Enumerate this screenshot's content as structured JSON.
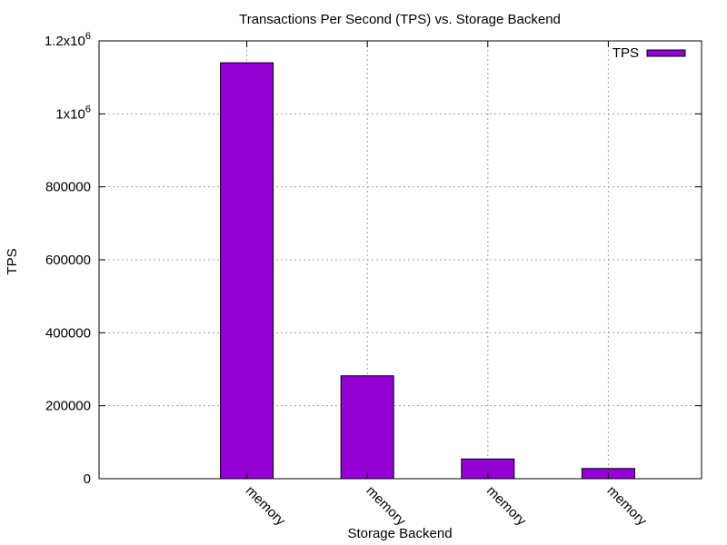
{
  "chart_data": {
    "type": "bar",
    "title": "Transactions Per Second (TPS) vs. Storage Backend",
    "xlabel": "Storage Backend",
    "ylabel": "TPS",
    "categories": [
      "memory",
      "memory",
      "memory",
      "memory"
    ],
    "series": [
      {
        "name": "TPS",
        "color": "#9400d3",
        "values": [
          1140000,
          282000,
          54000,
          28000
        ]
      }
    ],
    "ylim": [
      0,
      1200000
    ],
    "yticks": [
      0,
      200000,
      400000,
      600000,
      800000,
      1000000,
      1200000
    ],
    "ytick_labels": [
      "0",
      "200000",
      "400000",
      "600000",
      "800000",
      "1x10^6",
      "1.2x10^6"
    ],
    "grid": true,
    "legend_position": "top-right"
  }
}
